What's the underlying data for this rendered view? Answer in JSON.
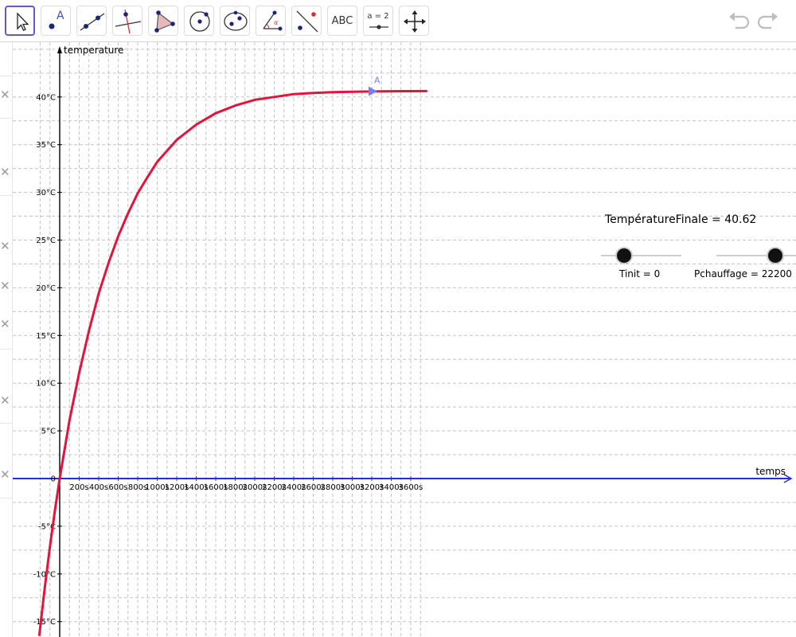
{
  "toolbar": {
    "tools": [
      {
        "name": "move-tool",
        "selected": true
      },
      {
        "name": "point-tool",
        "label": "A"
      },
      {
        "name": "line-tool"
      },
      {
        "name": "perpendicular-line-tool"
      },
      {
        "name": "polygon-tool"
      },
      {
        "name": "circle-tool"
      },
      {
        "name": "ellipse-tool"
      },
      {
        "name": "angle-tool",
        "label": "α"
      },
      {
        "name": "reflect-tool"
      },
      {
        "name": "text-tool",
        "label": "ABC"
      },
      {
        "name": "slider-tool",
        "label": "a = 2"
      },
      {
        "name": "move-graphics-view-tool"
      }
    ],
    "undo_icon": "undo-icon",
    "redo_icon": "redo-icon"
  },
  "graph": {
    "x_axis_label": "temps",
    "y_axis_label": "temperature",
    "point_label": "A",
    "curve_color": "#e3133b",
    "x_axis_color": "#2b2bd6",
    "point_color": "#7c7cf0"
  },
  "texts": {
    "temperature_finale": "TempératureFinale  =  40.62"
  },
  "sliders": [
    {
      "name": "Tinit",
      "label": "Tinit = 0",
      "value": 0,
      "fraction": 0.3
    },
    {
      "name": "Pchauffage",
      "label": "Pchauffage = 22200",
      "value": 22200,
      "fraction": 0.75
    }
  ],
  "chart_data": {
    "type": "line",
    "xlabel": "temps",
    "ylabel": "temperature",
    "x_tick_labels": [
      "200s",
      "400s",
      "600s",
      "800s",
      "1000s",
      "1200s",
      "1400s",
      "1600s",
      "1800s",
      "2000s",
      "2200s",
      "2400s",
      "2600s",
      "2800s",
      "3000s",
      "3200s",
      "3400s",
      "3600s"
    ],
    "y_tick_labels": [
      "40°C",
      "35°C",
      "30°C",
      "25°C",
      "20°C",
      "15°C",
      "10°C",
      "5°C",
      "0",
      "-5°C",
      "-10°C",
      "-15°C"
    ],
    "xlim": [
      -210,
      3770
    ],
    "ylim": [
      -16.5,
      45.5
    ],
    "grid": true,
    "series": [
      {
        "x": [
          -210,
          -150,
          -100,
          -50,
          0,
          100,
          200,
          300,
          400,
          500,
          600,
          700,
          800,
          900,
          1000,
          1200,
          1400,
          1600,
          1800,
          2000,
          2200,
          2400,
          2600,
          2800,
          3000,
          3200,
          3400,
          3600,
          3770
        ],
        "y": [
          -16.5,
          -11.2,
          -7.1,
          -3.4,
          0,
          6.1,
          11.1,
          15.5,
          19.4,
          22.6,
          25.4,
          27.8,
          29.9,
          31.6,
          33.2,
          35.5,
          37.1,
          38.3,
          39.1,
          39.7,
          40.0,
          40.3,
          40.42,
          40.5,
          40.55,
          40.58,
          40.6,
          40.61,
          40.62
        ]
      }
    ],
    "points": [
      {
        "label": "A",
        "x": 3200,
        "y": 40.6
      }
    ]
  }
}
